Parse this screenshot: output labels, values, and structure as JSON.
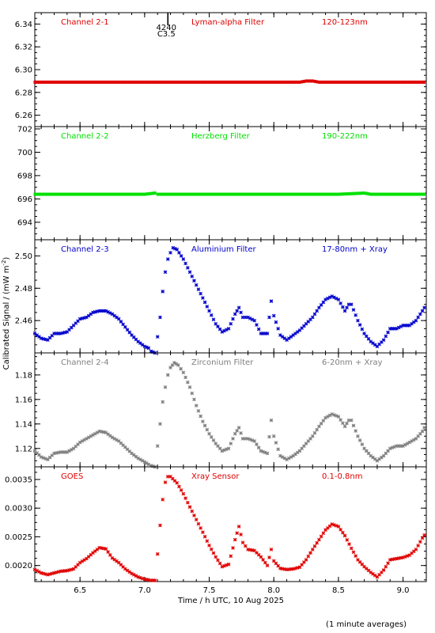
{
  "chart_data": {
    "type": "scatter",
    "shared_x": {
      "xlim": [
        6.15,
        9.18
      ],
      "ticks": [
        6.5,
        7.0,
        7.5,
        8.0,
        8.5,
        9.0
      ],
      "tick_labels": [
        "6.5",
        "7.0",
        "7.5",
        "8.0",
        "8.5",
        "9.0"
      ],
      "xlabel": "Time / h UTC, 10 Aug 2025"
    },
    "ylabel": "Calibrated Signal / (mW m",
    "ylabel_sup": "-2",
    "ylabel_close": ")",
    "footnote": "(1 minute averages)",
    "panels": [
      {
        "channel": "Channel 2-1",
        "filter": "Lyman-alpha Filter",
        "band": "120-123nm",
        "color": "#e00000",
        "ylim": [
          6.25,
          6.35
        ],
        "yticks": [
          6.26,
          6.28,
          6.3,
          6.32,
          6.34
        ],
        "ytick_labels": [
          "6.26",
          "6.28",
          "6.30",
          "6.32",
          "6.34"
        ],
        "annotation_top": "4240",
        "annotation_bottom": "C3.5",
        "annotation_x": 7.18,
        "points": [
          [
            6.15,
            6.289
          ],
          [
            6.5,
            6.289
          ],
          [
            7.0,
            6.289
          ],
          [
            7.5,
            6.289
          ],
          [
            8.0,
            6.289
          ],
          [
            8.2,
            6.289
          ],
          [
            8.25,
            6.29
          ],
          [
            8.3,
            6.29
          ],
          [
            8.35,
            6.289
          ],
          [
            8.5,
            6.289
          ],
          [
            9.0,
            6.289
          ],
          [
            9.18,
            6.289
          ]
        ]
      },
      {
        "channel": "Channel 2-2",
        "filter": "Herzberg Filter",
        "band": "190-222nm",
        "color": "#00e000",
        "ylim": [
          692.5,
          702.2
        ],
        "yticks": [
          694,
          696,
          698,
          700,
          702
        ],
        "ytick_labels": [
          "694",
          "696",
          "698",
          "700",
          "702"
        ],
        "points": [
          [
            6.15,
            696.4
          ],
          [
            6.5,
            696.4
          ],
          [
            7.0,
            696.4
          ],
          [
            7.08,
            696.5
          ],
          [
            7.1,
            696.4
          ],
          [
            7.5,
            696.4
          ],
          [
            8.0,
            696.4
          ],
          [
            8.5,
            696.4
          ],
          [
            8.7,
            696.5
          ],
          [
            8.75,
            696.4
          ],
          [
            9.18,
            696.4
          ]
        ]
      },
      {
        "channel": "Channel 2-3",
        "filter": "Aluminium Filter",
        "band": "17-80nm + Xray",
        "color": "#0000cc",
        "ylim": [
          2.44,
          2.51
        ],
        "yticks": [
          2.46,
          2.48,
          2.5
        ],
        "ytick_labels": [
          "2.46",
          "2.48",
          "2.50"
        ],
        "points": [
          [
            6.15,
            2.452
          ],
          [
            6.2,
            2.449
          ],
          [
            6.25,
            2.448
          ],
          [
            6.3,
            2.452
          ],
          [
            6.35,
            2.452
          ],
          [
            6.4,
            2.453
          ],
          [
            6.45,
            2.457
          ],
          [
            6.5,
            2.461
          ],
          [
            6.55,
            2.462
          ],
          [
            6.6,
            2.465
          ],
          [
            6.65,
            2.466
          ],
          [
            6.7,
            2.466
          ],
          [
            6.75,
            2.464
          ],
          [
            6.8,
            2.461
          ],
          [
            6.85,
            2.456
          ],
          [
            6.9,
            2.451
          ],
          [
            6.95,
            2.447
          ],
          [
            7.0,
            2.444
          ],
          [
            7.03,
            2.443
          ],
          [
            7.05,
            2.441
          ],
          [
            7.08,
            2.44
          ],
          [
            7.1,
            2.45
          ],
          [
            7.12,
            2.462
          ],
          [
            7.14,
            2.478
          ],
          [
            7.16,
            2.49
          ],
          [
            7.18,
            2.498
          ],
          [
            7.2,
            2.502
          ],
          [
            7.22,
            2.505
          ],
          [
            7.25,
            2.504
          ],
          [
            7.3,
            2.498
          ],
          [
            7.35,
            2.49
          ],
          [
            7.4,
            2.482
          ],
          [
            7.45,
            2.474
          ],
          [
            7.5,
            2.466
          ],
          [
            7.55,
            2.458
          ],
          [
            7.6,
            2.453
          ],
          [
            7.65,
            2.455
          ],
          [
            7.7,
            2.464
          ],
          [
            7.73,
            2.468
          ],
          [
            7.76,
            2.462
          ],
          [
            7.8,
            2.462
          ],
          [
            7.85,
            2.46
          ],
          [
            7.9,
            2.452
          ],
          [
            7.95,
            2.452
          ],
          [
            7.98,
            2.472
          ],
          [
            8.0,
            2.463
          ],
          [
            8.05,
            2.451
          ],
          [
            8.1,
            2.448
          ],
          [
            8.15,
            2.451
          ],
          [
            8.2,
            2.454
          ],
          [
            8.25,
            2.458
          ],
          [
            8.3,
            2.462
          ],
          [
            8.35,
            2.468
          ],
          [
            8.4,
            2.473
          ],
          [
            8.45,
            2.475
          ],
          [
            8.5,
            2.473
          ],
          [
            8.55,
            2.466
          ],
          [
            8.58,
            2.47
          ],
          [
            8.6,
            2.47
          ],
          [
            8.65,
            2.46
          ],
          [
            8.7,
            2.452
          ],
          [
            8.75,
            2.447
          ],
          [
            8.8,
            2.444
          ],
          [
            8.85,
            2.448
          ],
          [
            8.9,
            2.455
          ],
          [
            8.95,
            2.455
          ],
          [
            9.0,
            2.457
          ],
          [
            9.05,
            2.457
          ],
          [
            9.1,
            2.46
          ],
          [
            9.15,
            2.466
          ],
          [
            9.18,
            2.47
          ]
        ]
      },
      {
        "channel": "Channel 2-4",
        "filter": "Zirconium Filter",
        "band": "6-20nm + Xray",
        "color": "#808080",
        "ylim": [
          1.105,
          1.198
        ],
        "yticks": [
          1.12,
          1.14,
          1.16,
          1.18
        ],
        "ytick_labels": [
          "1.12",
          "1.14",
          "1.16",
          "1.18"
        ],
        "points": [
          [
            6.15,
            1.118
          ],
          [
            6.2,
            1.113
          ],
          [
            6.25,
            1.111
          ],
          [
            6.3,
            1.116
          ],
          [
            6.35,
            1.117
          ],
          [
            6.4,
            1.117
          ],
          [
            6.45,
            1.12
          ],
          [
            6.5,
            1.125
          ],
          [
            6.55,
            1.128
          ],
          [
            6.6,
            1.131
          ],
          [
            6.65,
            1.134
          ],
          [
            6.7,
            1.133
          ],
          [
            6.75,
            1.129
          ],
          [
            6.8,
            1.126
          ],
          [
            6.85,
            1.121
          ],
          [
            6.9,
            1.116
          ],
          [
            6.95,
            1.112
          ],
          [
            7.0,
            1.109
          ],
          [
            7.03,
            1.107
          ],
          [
            7.05,
            1.106
          ],
          [
            7.08,
            1.105
          ],
          [
            7.1,
            1.122
          ],
          [
            7.12,
            1.14
          ],
          [
            7.14,
            1.158
          ],
          [
            7.16,
            1.17
          ],
          [
            7.18,
            1.18
          ],
          [
            7.2,
            1.186
          ],
          [
            7.23,
            1.19
          ],
          [
            7.26,
            1.188
          ],
          [
            7.3,
            1.182
          ],
          [
            7.35,
            1.17
          ],
          [
            7.4,
            1.155
          ],
          [
            7.45,
            1.142
          ],
          [
            7.5,
            1.132
          ],
          [
            7.55,
            1.124
          ],
          [
            7.6,
            1.118
          ],
          [
            7.65,
            1.12
          ],
          [
            7.7,
            1.132
          ],
          [
            7.73,
            1.137
          ],
          [
            7.76,
            1.128
          ],
          [
            7.8,
            1.128
          ],
          [
            7.85,
            1.126
          ],
          [
            7.9,
            1.118
          ],
          [
            7.95,
            1.116
          ],
          [
            7.98,
            1.143
          ],
          [
            8.0,
            1.13
          ],
          [
            8.05,
            1.114
          ],
          [
            8.1,
            1.111
          ],
          [
            8.15,
            1.114
          ],
          [
            8.2,
            1.118
          ],
          [
            8.25,
            1.124
          ],
          [
            8.3,
            1.13
          ],
          [
            8.35,
            1.138
          ],
          [
            8.4,
            1.145
          ],
          [
            8.45,
            1.148
          ],
          [
            8.5,
            1.146
          ],
          [
            8.55,
            1.138
          ],
          [
            8.58,
            1.143
          ],
          [
            8.6,
            1.143
          ],
          [
            8.65,
            1.13
          ],
          [
            8.7,
            1.12
          ],
          [
            8.75,
            1.114
          ],
          [
            8.8,
            1.11
          ],
          [
            8.85,
            1.114
          ],
          [
            8.9,
            1.12
          ],
          [
            8.95,
            1.122
          ],
          [
            9.0,
            1.122
          ],
          [
            9.05,
            1.125
          ],
          [
            9.1,
            1.128
          ],
          [
            9.15,
            1.134
          ],
          [
            9.18,
            1.14
          ]
        ]
      },
      {
        "channel": "GOES",
        "filter": "Xray Sensor",
        "band": "0.1-0.8nm",
        "color": "#e00000",
        "ylim": [
          0.00172,
          0.00372
        ],
        "yticks": [
          0.002,
          0.0025,
          0.003,
          0.0035
        ],
        "ytick_labels": [
          "0.0020",
          "0.0025",
          "0.0030",
          "0.0035"
        ],
        "points": [
          [
            6.15,
            0.00193
          ],
          [
            6.2,
            0.00187
          ],
          [
            6.25,
            0.00184
          ],
          [
            6.3,
            0.00187
          ],
          [
            6.35,
            0.0019
          ],
          [
            6.4,
            0.00191
          ],
          [
            6.45,
            0.00194
          ],
          [
            6.5,
            0.00205
          ],
          [
            6.55,
            0.00212
          ],
          [
            6.6,
            0.00222
          ],
          [
            6.65,
            0.00231
          ],
          [
            6.7,
            0.00229
          ],
          [
            6.75,
            0.00213
          ],
          [
            6.8,
            0.00205
          ],
          [
            6.85,
            0.00194
          ],
          [
            6.9,
            0.00186
          ],
          [
            6.95,
            0.0018
          ],
          [
            7.0,
            0.00176
          ],
          [
            7.03,
            0.00175
          ],
          [
            7.05,
            0.00174
          ],
          [
            7.08,
            0.00174
          ],
          [
            7.1,
            0.0022
          ],
          [
            7.12,
            0.0027
          ],
          [
            7.14,
            0.00315
          ],
          [
            7.16,
            0.00345
          ],
          [
            7.18,
            0.00355
          ],
          [
            7.2,
            0.00355
          ],
          [
            7.25,
            0.00344
          ],
          [
            7.3,
            0.00325
          ],
          [
            7.35,
            0.00302
          ],
          [
            7.4,
            0.0028
          ],
          [
            7.45,
            0.00258
          ],
          [
            7.5,
            0.00235
          ],
          [
            7.55,
            0.00215
          ],
          [
            7.6,
            0.00198
          ],
          [
            7.65,
            0.00202
          ],
          [
            7.7,
            0.00245
          ],
          [
            7.73,
            0.00268
          ],
          [
            7.76,
            0.0024
          ],
          [
            7.8,
            0.00228
          ],
          [
            7.85,
            0.00226
          ],
          [
            7.9,
            0.00215
          ],
          [
            7.95,
            0.002
          ],
          [
            7.98,
            0.00228
          ],
          [
            8.0,
            0.00208
          ],
          [
            8.05,
            0.00195
          ],
          [
            8.1,
            0.00193
          ],
          [
            8.15,
            0.00194
          ],
          [
            8.2,
            0.00197
          ],
          [
            8.25,
            0.0021
          ],
          [
            8.3,
            0.00228
          ],
          [
            8.35,
            0.00245
          ],
          [
            8.4,
            0.00262
          ],
          [
            8.45,
            0.00272
          ],
          [
            8.5,
            0.00268
          ],
          [
            8.55,
            0.00252
          ],
          [
            8.6,
            0.0023
          ],
          [
            8.65,
            0.0021
          ],
          [
            8.7,
            0.00198
          ],
          [
            8.75,
            0.00188
          ],
          [
            8.8,
            0.0018
          ],
          [
            8.85,
            0.00192
          ],
          [
            8.9,
            0.0021
          ],
          [
            8.95,
            0.00212
          ],
          [
            9.0,
            0.00214
          ],
          [
            9.05,
            0.00218
          ],
          [
            9.1,
            0.00228
          ],
          [
            9.15,
            0.00248
          ],
          [
            9.18,
            0.00258
          ]
        ]
      }
    ]
  }
}
